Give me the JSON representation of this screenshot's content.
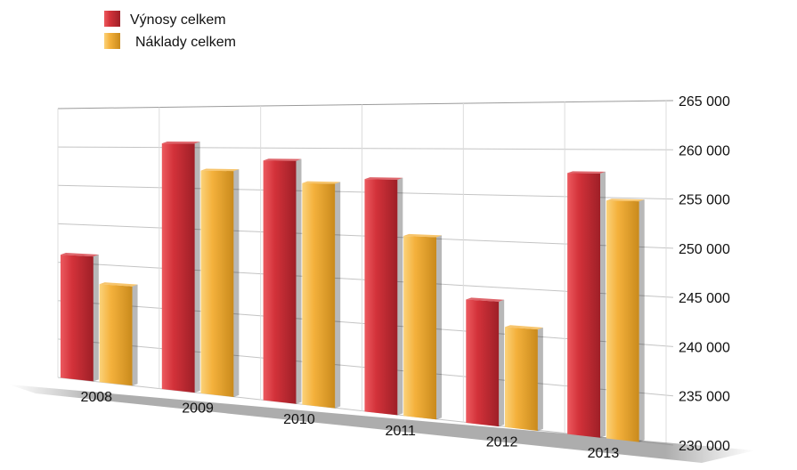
{
  "chart_data": {
    "type": "bar",
    "categories": [
      "2008",
      "2009",
      "2010",
      "2011",
      "2012",
      "2013"
    ],
    "series": [
      {
        "name": "Výnosy celkem",
        "color": "#d3323a",
        "values": [
          246000,
          260500,
          258500,
          256500,
          243500,
          257500
        ]
      },
      {
        "name": "Náklady celkem",
        "color": "#f4b13c",
        "values": [
          242500,
          257200,
          255900,
          250200,
          240800,
          254700
        ]
      }
    ],
    "ylim": [
      230000,
      265000
    ],
    "yticks": [
      230000,
      235000,
      240000,
      245000,
      250000,
      255000,
      260000,
      265000
    ],
    "ytick_labels": [
      "230 000",
      "235 000",
      "240 000",
      "245 000",
      "250 000",
      "255 000",
      "260 000",
      "265 000"
    ],
    "y_axis_position": "right",
    "grid": true,
    "legend_position": "top-left",
    "style": "3d-perspective"
  }
}
